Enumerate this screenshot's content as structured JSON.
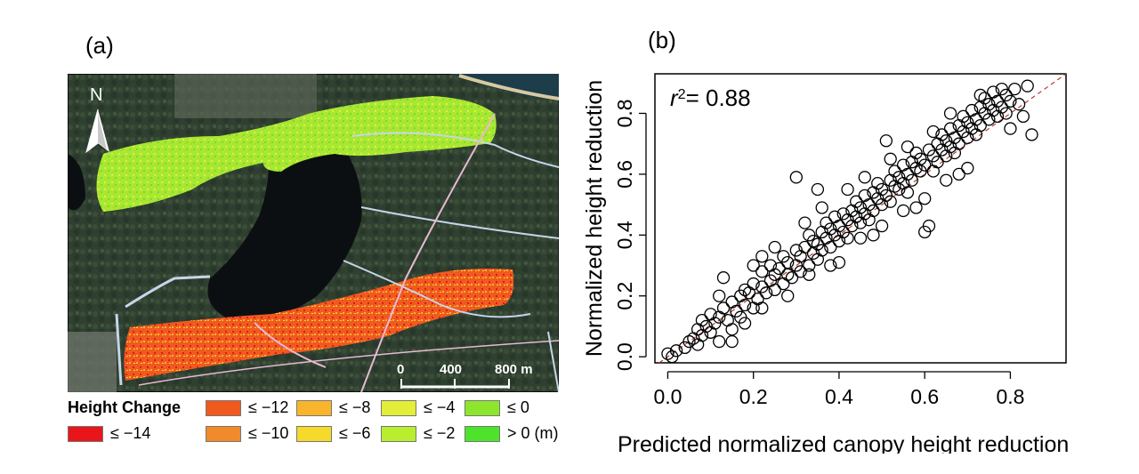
{
  "panel_a": {
    "label": "(a)",
    "north_label": "N",
    "scale_bar": {
      "ticks": [
        "0",
        "400",
        "800 m"
      ]
    },
    "legend": {
      "title": "Height Change",
      "items": [
        {
          "label": "≤ −14",
          "color": "#e8161b"
        },
        {
          "label": "≤ −12",
          "color": "#f05a1f"
        },
        {
          "label": "≤ −10",
          "color": "#f18a2a"
        },
        {
          "label": "≤ −8",
          "color": "#f8b52c"
        },
        {
          "label": "≤ −6",
          "color": "#f5d92b"
        },
        {
          "label": "≤ −4",
          "color": "#e3ee38"
        },
        {
          "label": "≤ −2",
          "color": "#b9ee2f"
        },
        {
          "label": "≤ 0",
          "color": "#8ee52d"
        },
        {
          "label": "> 0 (m)",
          "color": "#4de32a"
        }
      ]
    }
  },
  "panel_b": {
    "label": "(b)",
    "r2_text": "= 0.88"
  },
  "chart_data": {
    "type": "scatter",
    "xlabel": "Predicted normalized canopy height reduction",
    "ylabel": "Normalized height reduction",
    "xlim": [
      -0.03,
      0.93
    ],
    "ylim": [
      -0.02,
      0.93
    ],
    "xticks": [
      0.0,
      0.2,
      0.4,
      0.6,
      0.8
    ],
    "yticks": [
      0.0,
      0.2,
      0.4,
      0.6,
      0.8
    ],
    "xtick_labels": [
      "0.0",
      "0.2",
      "0.4",
      "0.6",
      "0.8"
    ],
    "ytick_labels": [
      "0.0",
      "0.2",
      "0.4",
      "0.6",
      "0.8"
    ],
    "annotation": {
      "r": "r",
      "sup": "2",
      "text": "= 0.88"
    },
    "reference_line": {
      "slope": 1,
      "intercept": 0,
      "color": "#c0392b",
      "style": "dashed"
    },
    "points": [
      [
        0.0,
        0.01
      ],
      [
        0.01,
        0.0
      ],
      [
        0.02,
        0.02
      ],
      [
        0.04,
        0.03
      ],
      [
        0.05,
        0.05
      ],
      [
        0.06,
        0.06
      ],
      [
        0.07,
        0.04
      ],
      [
        0.07,
        0.09
      ],
      [
        0.08,
        0.07
      ],
      [
        0.08,
        0.12
      ],
      [
        0.09,
        0.1
      ],
      [
        0.1,
        0.08
      ],
      [
        0.1,
        0.14
      ],
      [
        0.11,
        0.11
      ],
      [
        0.12,
        0.13
      ],
      [
        0.12,
        0.05
      ],
      [
        0.13,
        0.16
      ],
      [
        0.13,
        0.26
      ],
      [
        0.14,
        0.12
      ],
      [
        0.15,
        0.18
      ],
      [
        0.15,
        0.09
      ],
      [
        0.16,
        0.15
      ],
      [
        0.17,
        0.2
      ],
      [
        0.17,
        0.13
      ],
      [
        0.18,
        0.17
      ],
      [
        0.18,
        0.22
      ],
      [
        0.19,
        0.21
      ],
      [
        0.2,
        0.16
      ],
      [
        0.2,
        0.24
      ],
      [
        0.21,
        0.19
      ],
      [
        0.22,
        0.23
      ],
      [
        0.22,
        0.28
      ],
      [
        0.23,
        0.21
      ],
      [
        0.24,
        0.25
      ],
      [
        0.24,
        0.3
      ],
      [
        0.25,
        0.22
      ],
      [
        0.25,
        0.27
      ],
      [
        0.26,
        0.29
      ],
      [
        0.27,
        0.24
      ],
      [
        0.27,
        0.33
      ],
      [
        0.28,
        0.27
      ],
      [
        0.28,
        0.31
      ],
      [
        0.29,
        0.26
      ],
      [
        0.3,
        0.3
      ],
      [
        0.3,
        0.35
      ],
      [
        0.31,
        0.28
      ],
      [
        0.31,
        0.33
      ],
      [
        0.32,
        0.36
      ],
      [
        0.33,
        0.3
      ],
      [
        0.33,
        0.4
      ],
      [
        0.34,
        0.34
      ],
      [
        0.34,
        0.38
      ],
      [
        0.35,
        0.32
      ],
      [
        0.35,
        0.37
      ],
      [
        0.36,
        0.41
      ],
      [
        0.36,
        0.35
      ],
      [
        0.37,
        0.39
      ],
      [
        0.37,
        0.44
      ],
      [
        0.38,
        0.36
      ],
      [
        0.38,
        0.42
      ],
      [
        0.39,
        0.4
      ],
      [
        0.39,
        0.46
      ],
      [
        0.4,
        0.38
      ],
      [
        0.4,
        0.43
      ],
      [
        0.41,
        0.47
      ],
      [
        0.41,
        0.41
      ],
      [
        0.42,
        0.45
      ],
      [
        0.42,
        0.39
      ],
      [
        0.43,
        0.48
      ],
      [
        0.43,
        0.43
      ],
      [
        0.44,
        0.46
      ],
      [
        0.44,
        0.51
      ],
      [
        0.45,
        0.44
      ],
      [
        0.45,
        0.49
      ],
      [
        0.46,
        0.53
      ],
      [
        0.46,
        0.47
      ],
      [
        0.47,
        0.5
      ],
      [
        0.47,
        0.45
      ],
      [
        0.48,
        0.54
      ],
      [
        0.48,
        0.48
      ],
      [
        0.49,
        0.52
      ],
      [
        0.49,
        0.57
      ],
      [
        0.5,
        0.5
      ],
      [
        0.5,
        0.55
      ],
      [
        0.51,
        0.71
      ],
      [
        0.51,
        0.53
      ],
      [
        0.52,
        0.58
      ],
      [
        0.52,
        0.51
      ],
      [
        0.53,
        0.56
      ],
      [
        0.53,
        0.61
      ],
      [
        0.54,
        0.55
      ],
      [
        0.54,
        0.59
      ],
      [
        0.55,
        0.57
      ],
      [
        0.55,
        0.63
      ],
      [
        0.56,
        0.6
      ],
      [
        0.56,
        0.54
      ],
      [
        0.57,
        0.64
      ],
      [
        0.57,
        0.58
      ],
      [
        0.58,
        0.62
      ],
      [
        0.58,
        0.67
      ],
      [
        0.59,
        0.61
      ],
      [
        0.59,
        0.65
      ],
      [
        0.6,
        0.63
      ],
      [
        0.6,
        0.41
      ],
      [
        0.61,
        0.43
      ],
      [
        0.61,
        0.68
      ],
      [
        0.62,
        0.66
      ],
      [
        0.62,
        0.61
      ],
      [
        0.63,
        0.7
      ],
      [
        0.63,
        0.64
      ],
      [
        0.64,
        0.68
      ],
      [
        0.64,
        0.73
      ],
      [
        0.65,
        0.66
      ],
      [
        0.65,
        0.71
      ],
      [
        0.66,
        0.69
      ],
      [
        0.66,
        0.75
      ],
      [
        0.67,
        0.72
      ],
      [
        0.67,
        0.67
      ],
      [
        0.68,
        0.76
      ],
      [
        0.68,
        0.7
      ],
      [
        0.69,
        0.74
      ],
      [
        0.69,
        0.79
      ],
      [
        0.7,
        0.72
      ],
      [
        0.7,
        0.77
      ],
      [
        0.71,
        0.75
      ],
      [
        0.71,
        0.81
      ],
      [
        0.72,
        0.78
      ],
      [
        0.72,
        0.73
      ],
      [
        0.73,
        0.82
      ],
      [
        0.73,
        0.76
      ],
      [
        0.74,
        0.8
      ],
      [
        0.74,
        0.85
      ],
      [
        0.75,
        0.78
      ],
      [
        0.75,
        0.83
      ],
      [
        0.76,
        0.81
      ],
      [
        0.76,
        0.87
      ],
      [
        0.77,
        0.84
      ],
      [
        0.77,
        0.79
      ],
      [
        0.78,
        0.88
      ],
      [
        0.78,
        0.82
      ],
      [
        0.79,
        0.86
      ],
      [
        0.79,
        0.8
      ],
      [
        0.8,
        0.84
      ],
      [
        0.8,
        0.75
      ],
      [
        0.81,
        0.88
      ],
      [
        0.82,
        0.83
      ],
      [
        0.83,
        0.79
      ],
      [
        0.84,
        0.89
      ],
      [
        0.85,
        0.73
      ],
      [
        0.73,
        0.86
      ],
      [
        0.3,
        0.59
      ],
      [
        0.35,
        0.55
      ],
      [
        0.25,
        0.36
      ],
      [
        0.2,
        0.3
      ],
      [
        0.45,
        0.39
      ],
      [
        0.55,
        0.48
      ],
      [
        0.65,
        0.58
      ],
      [
        0.7,
        0.62
      ],
      [
        0.4,
        0.31
      ],
      [
        0.5,
        0.43
      ],
      [
        0.6,
        0.52
      ],
      [
        0.33,
        0.27
      ],
      [
        0.28,
        0.2
      ],
      [
        0.18,
        0.11
      ],
      [
        0.15,
        0.05
      ],
      [
        0.22,
        0.16
      ],
      [
        0.38,
        0.3
      ],
      [
        0.48,
        0.4
      ],
      [
        0.58,
        0.49
      ],
      [
        0.68,
        0.6
      ],
      [
        0.42,
        0.55
      ],
      [
        0.52,
        0.65
      ],
      [
        0.62,
        0.74
      ],
      [
        0.32,
        0.44
      ],
      [
        0.22,
        0.33
      ],
      [
        0.12,
        0.2
      ],
      [
        0.36,
        0.49
      ],
      [
        0.46,
        0.59
      ],
      [
        0.56,
        0.69
      ],
      [
        0.66,
        0.8
      ]
    ]
  }
}
